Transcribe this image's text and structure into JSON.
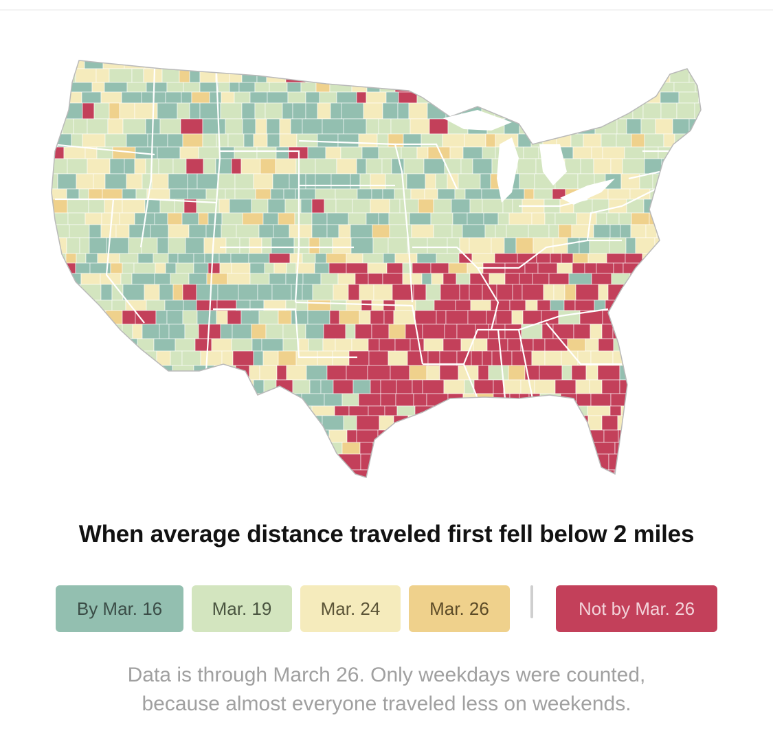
{
  "title": "When average distance traveled first fell below 2 miles",
  "legend": [
    {
      "label": "By Mar. 16",
      "color": "#93bfb0",
      "text_color": "#3b4d47"
    },
    {
      "label": "Mar. 19",
      "color": "#d3e5bf",
      "text_color": "#4a5540"
    },
    {
      "label": "Mar. 24",
      "color": "#f5ebbc",
      "text_color": "#5c5538"
    },
    {
      "label": "Mar. 26",
      "color": "#efd18c",
      "text_color": "#5c4b27"
    },
    {
      "label": "Not by Mar. 26",
      "color": "#c3405a",
      "text_color": "#f3d3da"
    }
  ],
  "note": {
    "line1": "Data is through March 26. Only weekdays were counted,",
    "line2": "because almost everyone traveled less on weekends."
  },
  "map": {
    "region": "United States (contiguous), counties",
    "colors": {
      "border": "#ffffff",
      "outline": "#b9b9b9"
    }
  }
}
